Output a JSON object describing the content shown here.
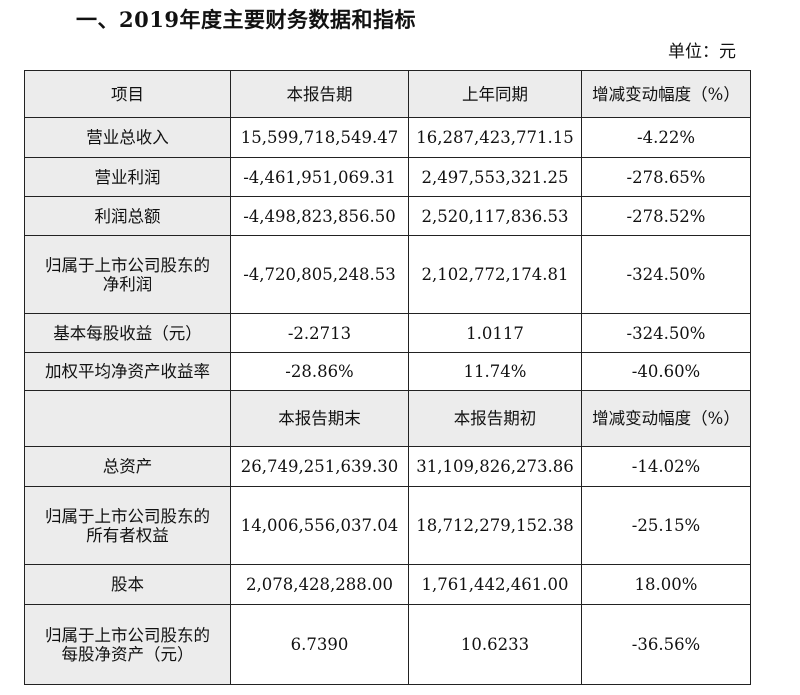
{
  "heading": "一、2019年度主要财务数据和指标",
  "unit": "单位：元",
  "header1": [
    "项目",
    "本报告期",
    "上年同期",
    "增减变动幅度（%）"
  ],
  "rows1": [
    {
      "label": [
        "营业总收入"
      ],
      "v1": "15,599,718,549.47",
      "v2": "16,287,423,771.15",
      "v3": "-4.22%"
    },
    {
      "label": [
        "营业利润"
      ],
      "v1": "-4,461,951,069.31",
      "v2": "2,497,553,321.25",
      "v3": "-278.65%"
    },
    {
      "label": [
        "利润总额"
      ],
      "v1": "-4,498,823,856.50",
      "v2": "2,520,117,836.53",
      "v3": "-278.52%"
    },
    {
      "label": [
        "归属于上市公司股东的",
        "净利润"
      ],
      "v1": "-4,720,805,248.53",
      "v2": "2,102,772,174.81",
      "v3": "-324.50%"
    },
    {
      "label": [
        "基本每股收益（元）"
      ],
      "v1": "-2.2713",
      "v2": "1.0117",
      "v3": "-324.50%"
    },
    {
      "label": [
        "加权平均净资产收益率"
      ],
      "v1": "-28.86%",
      "v2": "11.74%",
      "v3": "-40.60%"
    }
  ],
  "header2": [
    "",
    "本报告期末",
    "本报告期初",
    "增减变动幅度（%）"
  ],
  "rows2": [
    {
      "label": [
        "总资产"
      ],
      "v1": "26,749,251,639.30",
      "v2": "31,109,826,273.86",
      "v3": "-14.02%"
    },
    {
      "label": [
        "归属于上市公司股东的",
        "所有者权益"
      ],
      "v1": "14,006,556,037.04",
      "v2": "18,712,279,152.38",
      "v3": "-25.15%"
    },
    {
      "label": [
        "股本"
      ],
      "v1": "2,078,428,288.00",
      "v2": "1,761,442,461.00",
      "v3": "18.00%"
    },
    {
      "label": [
        "归属于上市公司股东的",
        "每股净资产（元）"
      ],
      "v1": "6.7390",
      "v2": "10.6233",
      "v3": "-36.56%"
    }
  ]
}
